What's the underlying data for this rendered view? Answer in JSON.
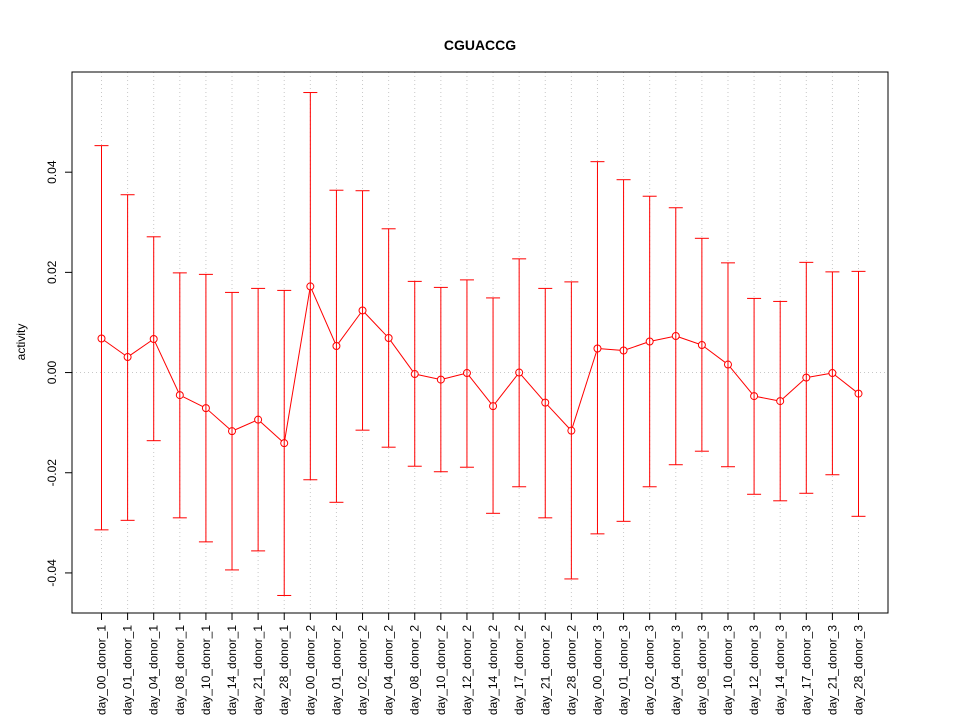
{
  "chart_data": {
    "type": "line",
    "title": "CGUACCG",
    "xlabel": "",
    "ylabel": "activity",
    "ylim": [
      -0.048,
      0.06
    ],
    "yticks": [
      -0.04,
      -0.02,
      0.0,
      0.02,
      0.04
    ],
    "ytick_labels": [
      "-0.04",
      "-0.02",
      "0.00",
      "0.02",
      "0.04"
    ],
    "grid": true,
    "series_color": "#ff0000",
    "grid_color": "#c8c8c8",
    "categories": [
      "day_00_donor_1",
      "day_01_donor_1",
      "day_04_donor_1",
      "day_08_donor_1",
      "day_10_donor_1",
      "day_14_donor_1",
      "day_21_donor_1",
      "day_28_donor_1",
      "day_00_donor_2",
      "day_01_donor_2",
      "day_02_donor_2",
      "day_04_donor_2",
      "day_08_donor_2",
      "day_10_donor_2",
      "day_12_donor_2",
      "day_14_donor_2",
      "day_17_donor_2",
      "day_21_donor_2",
      "day_28_donor_2",
      "day_00_donor_3",
      "day_01_donor_3",
      "day_02_donor_3",
      "day_04_donor_3",
      "day_08_donor_3",
      "day_10_donor_3",
      "day_12_donor_3",
      "day_14_donor_3",
      "day_17_donor_3",
      "day_21_donor_3",
      "day_28_donor_3"
    ],
    "values": [
      0.0068,
      0.0031,
      0.0067,
      -0.0045,
      -0.0071,
      -0.0117,
      -0.0094,
      -0.0141,
      0.0172,
      0.0053,
      0.0124,
      0.0069,
      -0.0003,
      -0.0014,
      -0.0001,
      -0.0067,
      0.0,
      -0.006,
      -0.0116,
      0.0048,
      0.0044,
      0.0062,
      0.0073,
      0.0055,
      0.0016,
      -0.0047,
      -0.0057,
      -0.001,
      -0.0001,
      -0.0042
    ],
    "upper": [
      0.0453,
      0.0355,
      0.0271,
      0.0199,
      0.0196,
      0.016,
      0.0168,
      0.0164,
      0.0559,
      0.0364,
      0.0363,
      0.0287,
      0.0182,
      0.017,
      0.0185,
      0.0149,
      0.0227,
      0.0168,
      0.0181,
      0.0421,
      0.0385,
      0.0352,
      0.0329,
      0.0268,
      0.0219,
      0.0148,
      0.0142,
      0.022,
      0.0201,
      0.0202
    ],
    "lower": [
      -0.0314,
      -0.0295,
      -0.0136,
      -0.029,
      -0.0338,
      -0.0394,
      -0.0356,
      -0.0445,
      -0.0214,
      -0.0259,
      -0.0115,
      -0.0149,
      -0.0187,
      -0.0198,
      -0.0189,
      -0.0281,
      -0.0228,
      -0.029,
      -0.0412,
      -0.0322,
      -0.0297,
      -0.0228,
      -0.0184,
      -0.0157,
      -0.0188,
      -0.0243,
      -0.0256,
      -0.0241,
      -0.0204,
      -0.0287
    ]
  }
}
